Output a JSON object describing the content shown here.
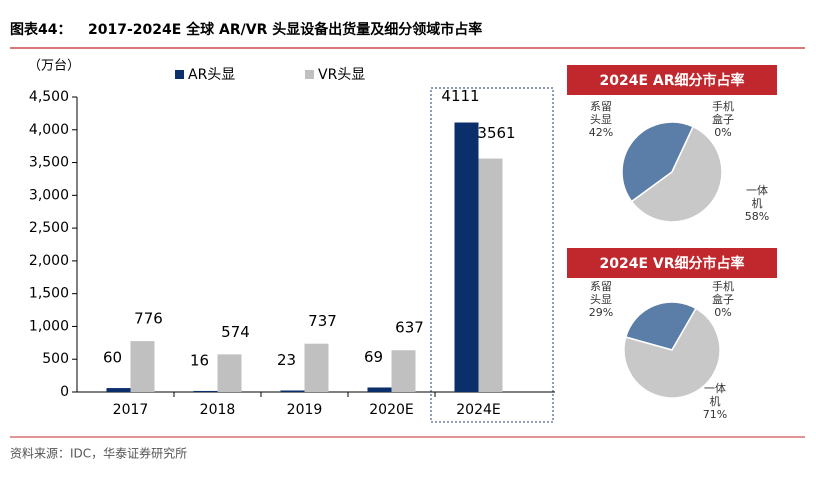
{
  "header": {
    "label": "图表44：",
    "title": "2017-2024E 全球 AR/VR 头显设备出货量及细分领域市占率"
  },
  "source": "资料来源：IDC，华泰证券研究所",
  "chart_data": [
    {
      "type": "bar",
      "y_label": "（万台）",
      "legend": "top",
      "categories": [
        "2017",
        "2018",
        "2019",
        "2020E",
        "2024E"
      ],
      "series": [
        {
          "name": "AR头显",
          "color": "#0b2f6b",
          "values": [
            60,
            16,
            23,
            69,
            4111
          ]
        },
        {
          "name": "VR头显",
          "color": "#c0c0c0",
          "values": [
            776,
            574,
            737,
            637,
            3561
          ]
        }
      ],
      "ylim": [
        0,
        4500
      ],
      "yticks": [
        0,
        500,
        {
          "value": 1000,
          "label": "1,000"
        },
        {
          "value": 1500,
          "label": "1,500"
        },
        {
          "value": 2000,
          "label": "2,000"
        },
        {
          "value": 2500,
          "label": "2,500"
        },
        {
          "value": 3000,
          "label": "3,000"
        },
        {
          "value": 3500,
          "label": "3,500"
        },
        {
          "value": 4000,
          "label": "4,000"
        },
        {
          "value": 4500,
          "label": "4,500"
        }
      ]
    },
    {
      "type": "pie",
      "title": "2024E AR细分市占率",
      "categories": [
        "系留头显",
        "手机盒子",
        "一体机"
      ],
      "values": [
        42,
        0,
        58
      ],
      "value_labels": [
        "42%",
        "0%",
        "58%"
      ],
      "colors": [
        "#5a7ea8",
        "#0b2f6b",
        "#c8c8c8"
      ]
    },
    {
      "type": "pie",
      "title": "2024E VR细分市占率",
      "categories": [
        "系留头显",
        "手机盒子",
        "一体机"
      ],
      "values": [
        29,
        0,
        71
      ],
      "value_labels": [
        "29%",
        "0%",
        "71%"
      ],
      "colors": [
        "#5a7ea8",
        "#0b2f6b",
        "#c8c8c8"
      ]
    }
  ]
}
